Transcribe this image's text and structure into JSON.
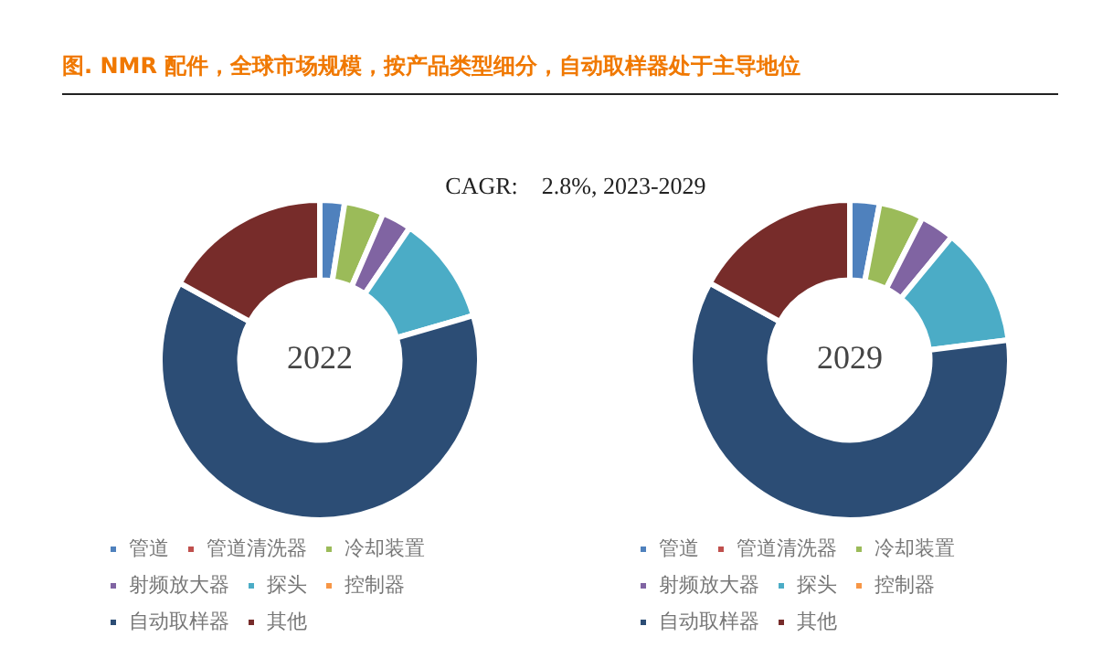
{
  "chart_data": [
    {
      "type": "donut",
      "title": "2022",
      "annotations": [
        "图.  NMR 配件，全球市场规模，按产品类型细分，自动取样器处于主导地位",
        "CAGR:    2.8%, 2023-2029"
      ],
      "categories": [
        "管道",
        "管道清洗器",
        "冷却装置",
        "射频放大器",
        "探头",
        "控制器",
        "自动取样器",
        "其他"
      ],
      "values": [
        2.5,
        0,
        4,
        3,
        11,
        0,
        62.5,
        17
      ],
      "colors": [
        "#4f81bd",
        "#c0504d",
        "#9bbb59",
        "#8064a2",
        "#4bacc6",
        "#f79646",
        "#2c4d75",
        "#772c2a"
      ],
      "legend": "bottom"
    },
    {
      "type": "donut",
      "title": "2029",
      "categories": [
        "管道",
        "管道清洗器",
        "冷却装置",
        "射频放大器",
        "探头",
        "控制器",
        "自动取样器",
        "其他"
      ],
      "values": [
        3,
        0,
        4.5,
        3.5,
        12,
        0,
        60,
        17
      ],
      "colors": [
        "#4f81bd",
        "#c0504d",
        "#9bbb59",
        "#8064a2",
        "#4bacc6",
        "#f79646",
        "#2c4d75",
        "#772c2a"
      ],
      "legend": "bottom"
    }
  ]
}
